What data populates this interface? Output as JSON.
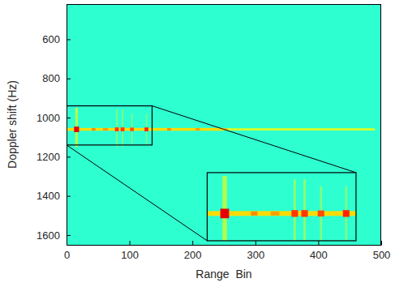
{
  "chart_data": {
    "type": "heatmap",
    "xlabel": "Range  Bin",
    "ylabel": "Doppler shift (Hz)",
    "xlim": [
      0,
      500
    ],
    "ylim": [
      420,
      1650
    ],
    "xticks": [
      0,
      100,
      200,
      300,
      400,
      500
    ],
    "yticks": [
      600,
      800,
      1000,
      1200,
      1400,
      1600
    ],
    "zlim": [
      0,
      1
    ],
    "cells": [
      {
        "x": [
          0,
          500
        ],
        "y": [
          420,
          1650
        ],
        "value": 0.42
      },
      {
        "x": [
          14,
          18
        ],
        "y": [
          950,
          1150
        ],
        "value": 0.55
      },
      {
        "x": [
          79,
          81
        ],
        "y": [
          960,
          1150
        ],
        "value": 0.52
      },
      {
        "x": [
          88,
          90
        ],
        "y": [
          960,
          1150
        ],
        "value": 0.52
      },
      {
        "x": [
          103,
          105
        ],
        "y": [
          980,
          1140
        ],
        "value": 0.5
      },
      {
        "x": [
          126,
          128
        ],
        "y": [
          980,
          1140
        ],
        "value": 0.5
      },
      {
        "x": [
          0,
          250
        ],
        "y": [
          1053,
          1067
        ],
        "value": 0.66
      },
      {
        "x": [
          250,
          490
        ],
        "y": [
          1054,
          1066
        ],
        "value": 0.58
      },
      {
        "x": [
          40,
          46
        ],
        "y": [
          1054,
          1066
        ],
        "value": 0.74
      },
      {
        "x": [
          58,
          66
        ],
        "y": [
          1054,
          1066
        ],
        "value": 0.72
      },
      {
        "x": [
          160,
          166
        ],
        "y": [
          1054,
          1066
        ],
        "value": 0.74
      },
      {
        "x": [
          205,
          212
        ],
        "y": [
          1054,
          1066
        ],
        "value": 0.72
      },
      {
        "x": [
          250,
          256
        ],
        "y": [
          1055,
          1065
        ],
        "value": 0.7
      },
      {
        "x": [
          12,
          20
        ],
        "y": [
          1046,
          1074
        ],
        "value": 0.9
      },
      {
        "x": [
          77,
          83
        ],
        "y": [
          1050,
          1070
        ],
        "value": 0.82
      },
      {
        "x": [
          86,
          92
        ],
        "y": [
          1050,
          1070
        ],
        "value": 0.82
      },
      {
        "x": [
          101,
          107
        ],
        "y": [
          1051,
          1069
        ],
        "value": 0.8
      },
      {
        "x": [
          124,
          130
        ],
        "y": [
          1050,
          1070
        ],
        "value": 0.84
      }
    ],
    "inset": {
      "xlim": [
        0,
        136
      ],
      "ylim": [
        940,
        1140
      ]
    }
  }
}
